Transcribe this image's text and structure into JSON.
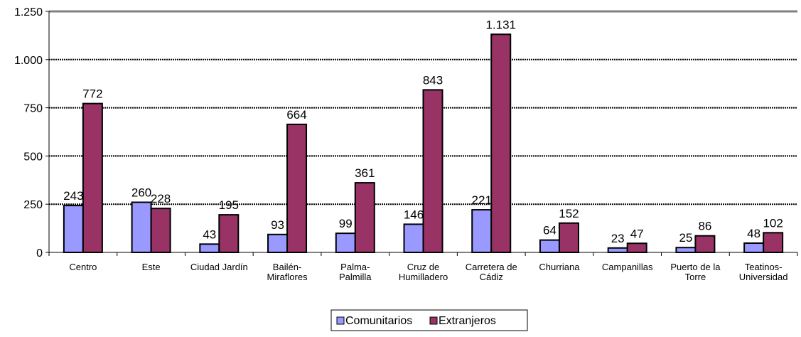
{
  "chart_data": {
    "type": "bar",
    "categories": [
      [
        "Centro"
      ],
      [
        "Este"
      ],
      [
        "Ciudad Jardín"
      ],
      [
        "Bailén-",
        "Miraflores"
      ],
      [
        "Palma-",
        "Palmilla"
      ],
      [
        "Cruz de",
        "Humilladero"
      ],
      [
        "Carretera de",
        "Cádiz"
      ],
      [
        "Churriana"
      ],
      [
        "Campanillas"
      ],
      [
        "Puerto de la",
        "Torre"
      ],
      [
        "Teatinos-",
        "Universidad"
      ]
    ],
    "series": [
      {
        "name": "Comunitarios",
        "color": "#9999ff",
        "values": [
          243,
          260,
          43,
          93,
          99,
          146,
          221,
          64,
          23,
          25,
          48
        ],
        "labels": [
          "243",
          "260",
          "43",
          "93",
          "99",
          "146",
          "221",
          "64",
          "23",
          "25",
          "48"
        ]
      },
      {
        "name": "Extranjeros",
        "color": "#993366",
        "values": [
          772,
          228,
          195,
          664,
          361,
          843,
          1131,
          152,
          47,
          86,
          102
        ],
        "labels": [
          "772",
          "228",
          "195",
          "664",
          "361",
          "843",
          "1.131",
          "152",
          "47",
          "86",
          "102"
        ]
      }
    ],
    "yticks": [
      0,
      250,
      500,
      750,
      1000,
      1250
    ],
    "ytick_labels": [
      "0",
      "250",
      "500",
      "750",
      "1.000",
      "1.250"
    ],
    "ylim": [
      0,
      1250
    ],
    "grid": true,
    "legend_position": "bottom-center",
    "title": "",
    "xlabel": "",
    "ylabel": ""
  }
}
